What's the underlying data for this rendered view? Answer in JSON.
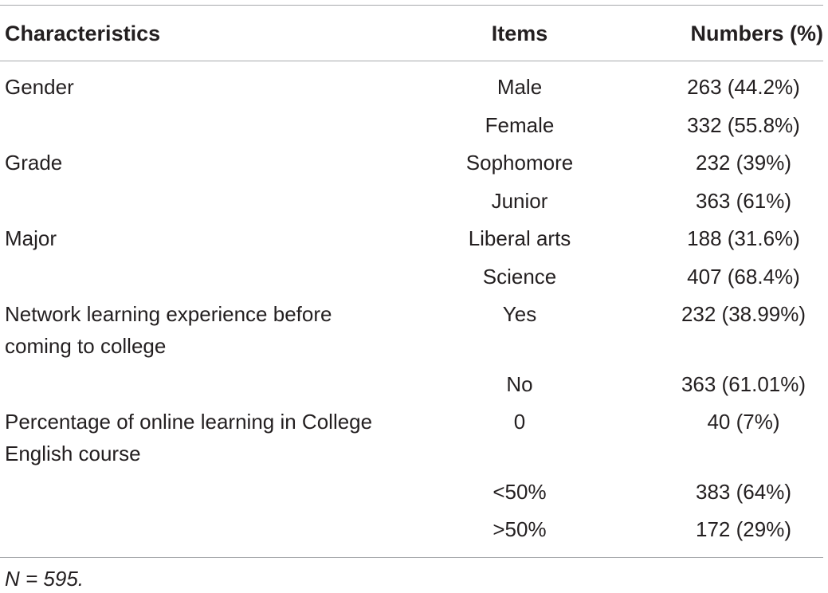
{
  "table": {
    "headers": {
      "characteristics": "Characteristics",
      "items": "Items",
      "numbers": "Numbers (%)"
    },
    "rows": [
      {
        "characteristic": "Gender",
        "item": "Male",
        "number": "263 (44.2%)"
      },
      {
        "characteristic": "",
        "item": "Female",
        "number": "332 (55.8%)"
      },
      {
        "characteristic": "Grade",
        "item": "Sophomore",
        "number": "232 (39%)"
      },
      {
        "characteristic": "",
        "item": "Junior",
        "number": "363 (61%)"
      },
      {
        "characteristic": "Major",
        "item": "Liberal arts",
        "number": "188 (31.6%)"
      },
      {
        "characteristic": "",
        "item": "Science",
        "number": "407 (68.4%)"
      },
      {
        "characteristic": "Network learning experience before coming to college",
        "item": "Yes",
        "number": "232 (38.99%)"
      },
      {
        "characteristic": "",
        "item": "No",
        "number": "363 (61.01%)"
      },
      {
        "characteristic": "Percentage of online learning in College English course",
        "item": "0",
        "number": "40 (7%)"
      },
      {
        "characteristic": "",
        "item": "<50%",
        "number": "383 (64%)"
      },
      {
        "characteristic": "",
        "item": ">50%",
        "number": "172 (29%)"
      }
    ]
  },
  "footnote": "N = 595."
}
